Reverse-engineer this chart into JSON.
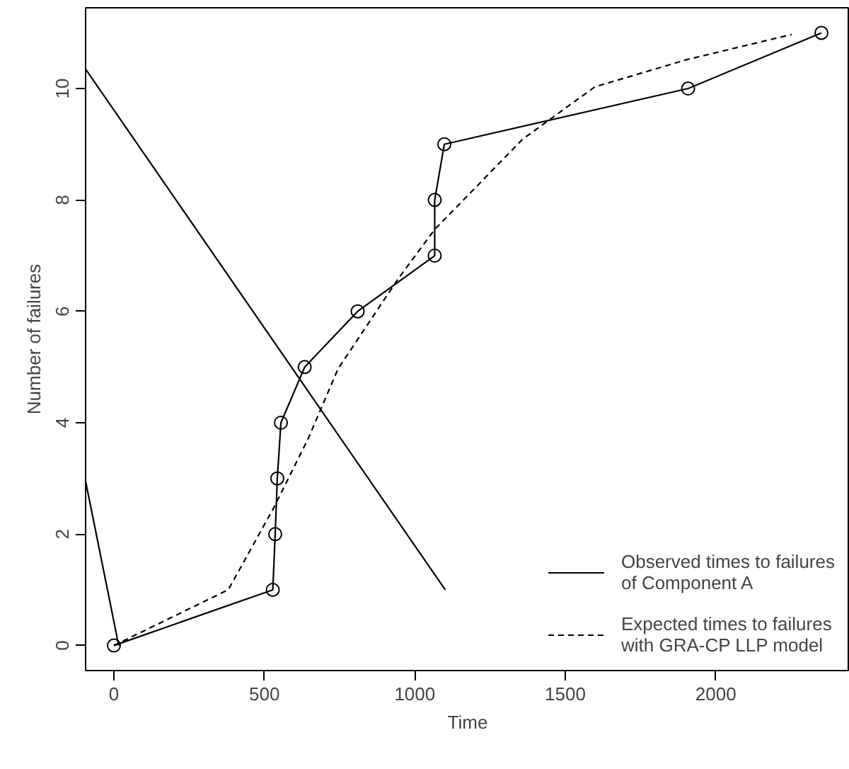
{
  "chart_data": {
    "type": "line",
    "xlabel": "Time",
    "ylabel": "Number of failures",
    "xlim": [
      -94,
      2445
    ],
    "ylim": [
      -0.45,
      11.45
    ],
    "xticks": [
      0,
      500,
      1000,
      1500,
      2000
    ],
    "yticks": [
      0,
      2,
      4,
      6,
      8,
      10
    ],
    "grid": false,
    "legend": "bottom right",
    "series": [
      {
        "name": "Observed times to failures\nof Component A",
        "color": "#000000",
        "marker": "circle",
        "line_style": "solid",
        "x": [
          0,
          528,
          536,
          543,
          555,
          634,
          810,
          1066,
          1066,
          1098,
          1908,
          2351
        ],
        "values": [
          0,
          1,
          2,
          3,
          4,
          5,
          6,
          7,
          8,
          9,
          10,
          11
        ]
      },
      {
        "name": "Expected times to failures\nwith GRA-CP LLP model",
        "color": "#000000",
        "marker": "none",
        "line_style": "dashed",
        "x": [
          0,
          380,
          530,
          646,
          745,
          944,
          1066,
          1358,
          1598,
          1904,
          2252
        ],
        "values": [
          0,
          1,
          2.46,
          3.72,
          4.97,
          6.58,
          7.47,
          9.09,
          10.03,
          10.52,
          10.97
        ]
      },
      {
        "color": "#000000",
        "marker": "none",
        "line_style": "solid",
        "x": [
          -94,
          16
        ],
        "values": [
          2.95,
          0
        ]
      },
      {
        "color": "#000000",
        "marker": "none",
        "line_style": "solid",
        "x": [
          -94,
          1101
        ],
        "values": [
          10.35,
          1
        ]
      }
    ]
  }
}
